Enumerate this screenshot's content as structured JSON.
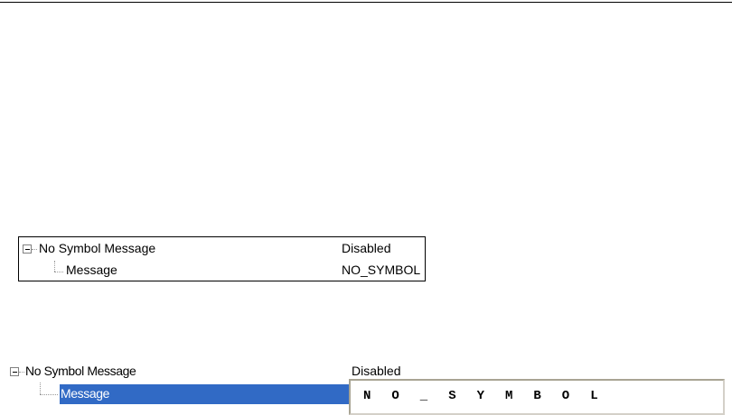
{
  "panel_static": {
    "parent_label": "No Symbol Message",
    "parent_value": "Disabled",
    "child_label": "Message",
    "child_value": "NO_SYMBOL"
  },
  "panel_editing": {
    "parent_label": "No Symbol Message",
    "parent_value": "Disabled",
    "child_label": "Message",
    "edit_value": "NO_SYMBOL",
    "selection_color": "#316ac5"
  }
}
